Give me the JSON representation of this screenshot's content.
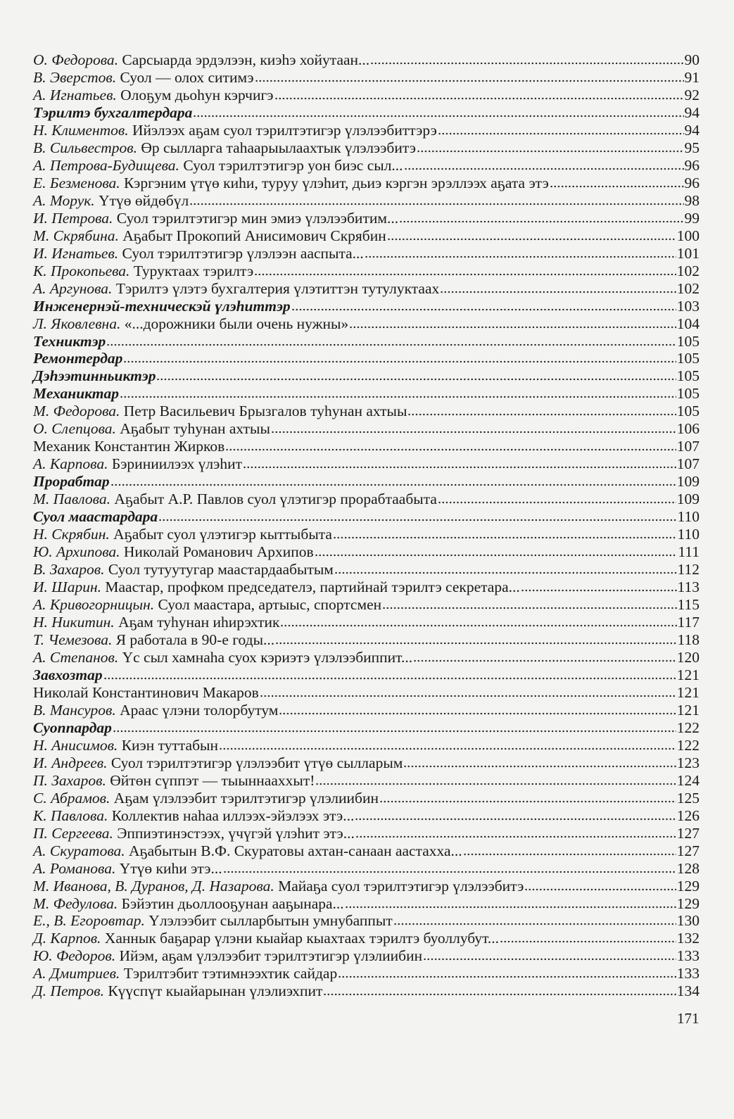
{
  "toc": [
    {
      "author": "О. Федорова.",
      "title": "Сарсыарда эрдэлээн, киэһэ хойутаан...",
      "page": "90"
    },
    {
      "author": "В. Эверстов.",
      "title": "Суол — олох ситимэ",
      "page": "91"
    },
    {
      "author": "А. Игнатьев.",
      "title": "Олоҕум дьоһун кэрчигэ",
      "page": "92"
    },
    {
      "section": true,
      "title": "Тэрилтэ бухгалтердара",
      "page": "94"
    },
    {
      "author": "Н. Климентов.",
      "title": "Ийэлээх аҕам суол тэрилтэтигэр үлэлээбиттэрэ",
      "page": "94"
    },
    {
      "author": "В. Сильвестров.",
      "title": "Өр сылларга таһаарыылаахтык үлэлээбитэ",
      "page": "95"
    },
    {
      "author": "А. Петрова-Будищева.",
      "title": "Суол тэрилтэтигэр уон биэс сыл...",
      "page": "96"
    },
    {
      "author": "Е. Безменова.",
      "title": "Кэргэним үтүө киһи, туруу үлэһит, дьиэ кэргэн эрэллээх аҕата этэ",
      "page": "96"
    },
    {
      "author": "А. Морук.",
      "title": "Үтүө өйдөбүл",
      "page": "98"
    },
    {
      "author": "И. Петрова.",
      "title": "Суол тэрилтэтигэр мин эмиэ үлэлээбитим...",
      "page": "99"
    },
    {
      "author": "М. Скрябина.",
      "title": "Аҕабыт Прокопий Анисимович Скрябин",
      "page": "100"
    },
    {
      "author": "И. Игнатьев.",
      "title": "Суол тэрилтэтигэр үлэлээн ааспыта...",
      "page": "101"
    },
    {
      "author": "К. Прокопьева.",
      "title": "Туруктаах тэрилтэ",
      "page": "102"
    },
    {
      "author": "А. Аргунова.",
      "title": "Тэрилтэ үлэтэ бухгалтерия үлэтиттэн тутулуктаах",
      "page": "102"
    },
    {
      "section": true,
      "title": "Инженернэй-техническэй үлэһиттэр",
      "page": "103"
    },
    {
      "author": "Л. Яковлевна.",
      "title": "«...дорожники были очень нужны»",
      "page": "104"
    },
    {
      "section": true,
      "title": "Техниктэр",
      "page": "105"
    },
    {
      "section": true,
      "title": "Ремонтердар",
      "page": "105"
    },
    {
      "section": true,
      "title": "Дэһээтинньиктэр",
      "page": "105"
    },
    {
      "section": true,
      "title": "Механиктар",
      "page": "105"
    },
    {
      "author": "М. Федорова.",
      "title": "Петр Васильевич Брызгалов туһунан ахтыы",
      "page": "105"
    },
    {
      "author": "О. Слепцова.",
      "title": "Аҕабыт туһунан ахтыы",
      "page": "106"
    },
    {
      "title": "Механик Константин Жирков",
      "page": "107"
    },
    {
      "author": "А. Карпова.",
      "title": "Бэриниилээх үлэһит",
      "page": "107"
    },
    {
      "section": true,
      "title": "Прорабтар",
      "page": "109"
    },
    {
      "author": "М. Павлова.",
      "title": "Аҕабыт А.Р. Павлов суол үлэтигэр прорабтаабыта",
      "page": "109"
    },
    {
      "section": true,
      "title": "Суол маастардара",
      "page": "110"
    },
    {
      "author": "Н. Скрябин.",
      "title": "Аҕабыт суол үлэтигэр кыттыбыта",
      "page": "110"
    },
    {
      "author": "Ю. Архипова.",
      "title": "Николай Романович Архипов",
      "page": "111"
    },
    {
      "author": "В. Захаров.",
      "title": "Суол тутуутугар маастардаабытым",
      "page": "112"
    },
    {
      "author": "И. Шарин.",
      "title": "Маастар, профком председателэ, партийнай тэрилтэ секретара...",
      "page": "113"
    },
    {
      "author": "А. Кривогорницын.",
      "title": "Суол маастара, артыыс, спортсмен",
      "page": "115"
    },
    {
      "author": "Н. Никитин.",
      "title": "Аҕам туһунан иһирэхтик",
      "page": "117"
    },
    {
      "author": "Т. Чемезова.",
      "title": "Я работала в 90-е годы...",
      "page": "118"
    },
    {
      "author": "А. Степанов.",
      "title": "Үс сыл хамнаһа суох кэриэтэ үлэлээбиппит...",
      "page": "120"
    },
    {
      "section": true,
      "title": "Завхозтар",
      "page": "121"
    },
    {
      "title": "Николай Константинович Макаров",
      "page": "121"
    },
    {
      "author": "В. Мансуров.",
      "title": "Араас үлэни толорбутум",
      "page": "121"
    },
    {
      "section": true,
      "title": "Суоппардар",
      "page": "122"
    },
    {
      "author": "Н. Анисимов.",
      "title": "Киэн туттабын",
      "page": "122"
    },
    {
      "author": "И. Андреев.",
      "title": "Суол тэрилтэтигэр үлэлээбит үтүө сылларым",
      "page": "123"
    },
    {
      "author": "П. Захаров.",
      "title": "Өйтөн сүппэт — тыыннааххыт!",
      "page": "124"
    },
    {
      "author": "С. Абрамов.",
      "title": "Аҕам үлэлээбит тэрилтэтигэр үлэлиибин",
      "page": "125"
    },
    {
      "author": "К. Павлова.",
      "title": "Коллектив наһаа иллээх-эйэлээх этэ...",
      "page": "126"
    },
    {
      "author": "П. Сергеева.",
      "title": "Эппиэтинэстээх, үчүгэй үлэһит этэ...",
      "page": "127"
    },
    {
      "author": "А. Скуратова.",
      "title": "Аҕабытын В.Ф. Скуратовы ахтан-санаан аастахха...",
      "page": "127"
    },
    {
      "author": "А. Романова.",
      "title": "Үтүө киһи этэ...",
      "page": "128"
    },
    {
      "author": "М. Иванова, В. Дуранов, Д. Назарова.",
      "title": "Майаҕа суол тэрилтэтигэр үлэлээбитэ",
      "page": "129"
    },
    {
      "author": "М. Федулова.",
      "title": "Бэйэтин дьоллооҕунан ааҕынара...",
      "page": "129"
    },
    {
      "author": "Е., В. Егоровтар.",
      "title": "Үлэлээбит сылларбытын умнубаппыт",
      "page": "130"
    },
    {
      "author": "Д. Карпов.",
      "title": "Ханнык баҕарар үлэни кыайар кыахтаах тэрилтэ буоллубут...",
      "page": "132"
    },
    {
      "author": "Ю. Федоров.",
      "title": "Ийэм, аҕам үлэлээбит тэрилтэтигэр үлэлиибин",
      "page": "133"
    },
    {
      "author": "А. Дмитриев.",
      "title": "Тэрилтэбит тэтимнээхтик сайдар",
      "page": "133"
    },
    {
      "author": "Д. Петров.",
      "title": "Күүспүт кыайарынан үлэлиэхпит",
      "page": "134"
    }
  ],
  "page_number": "171"
}
